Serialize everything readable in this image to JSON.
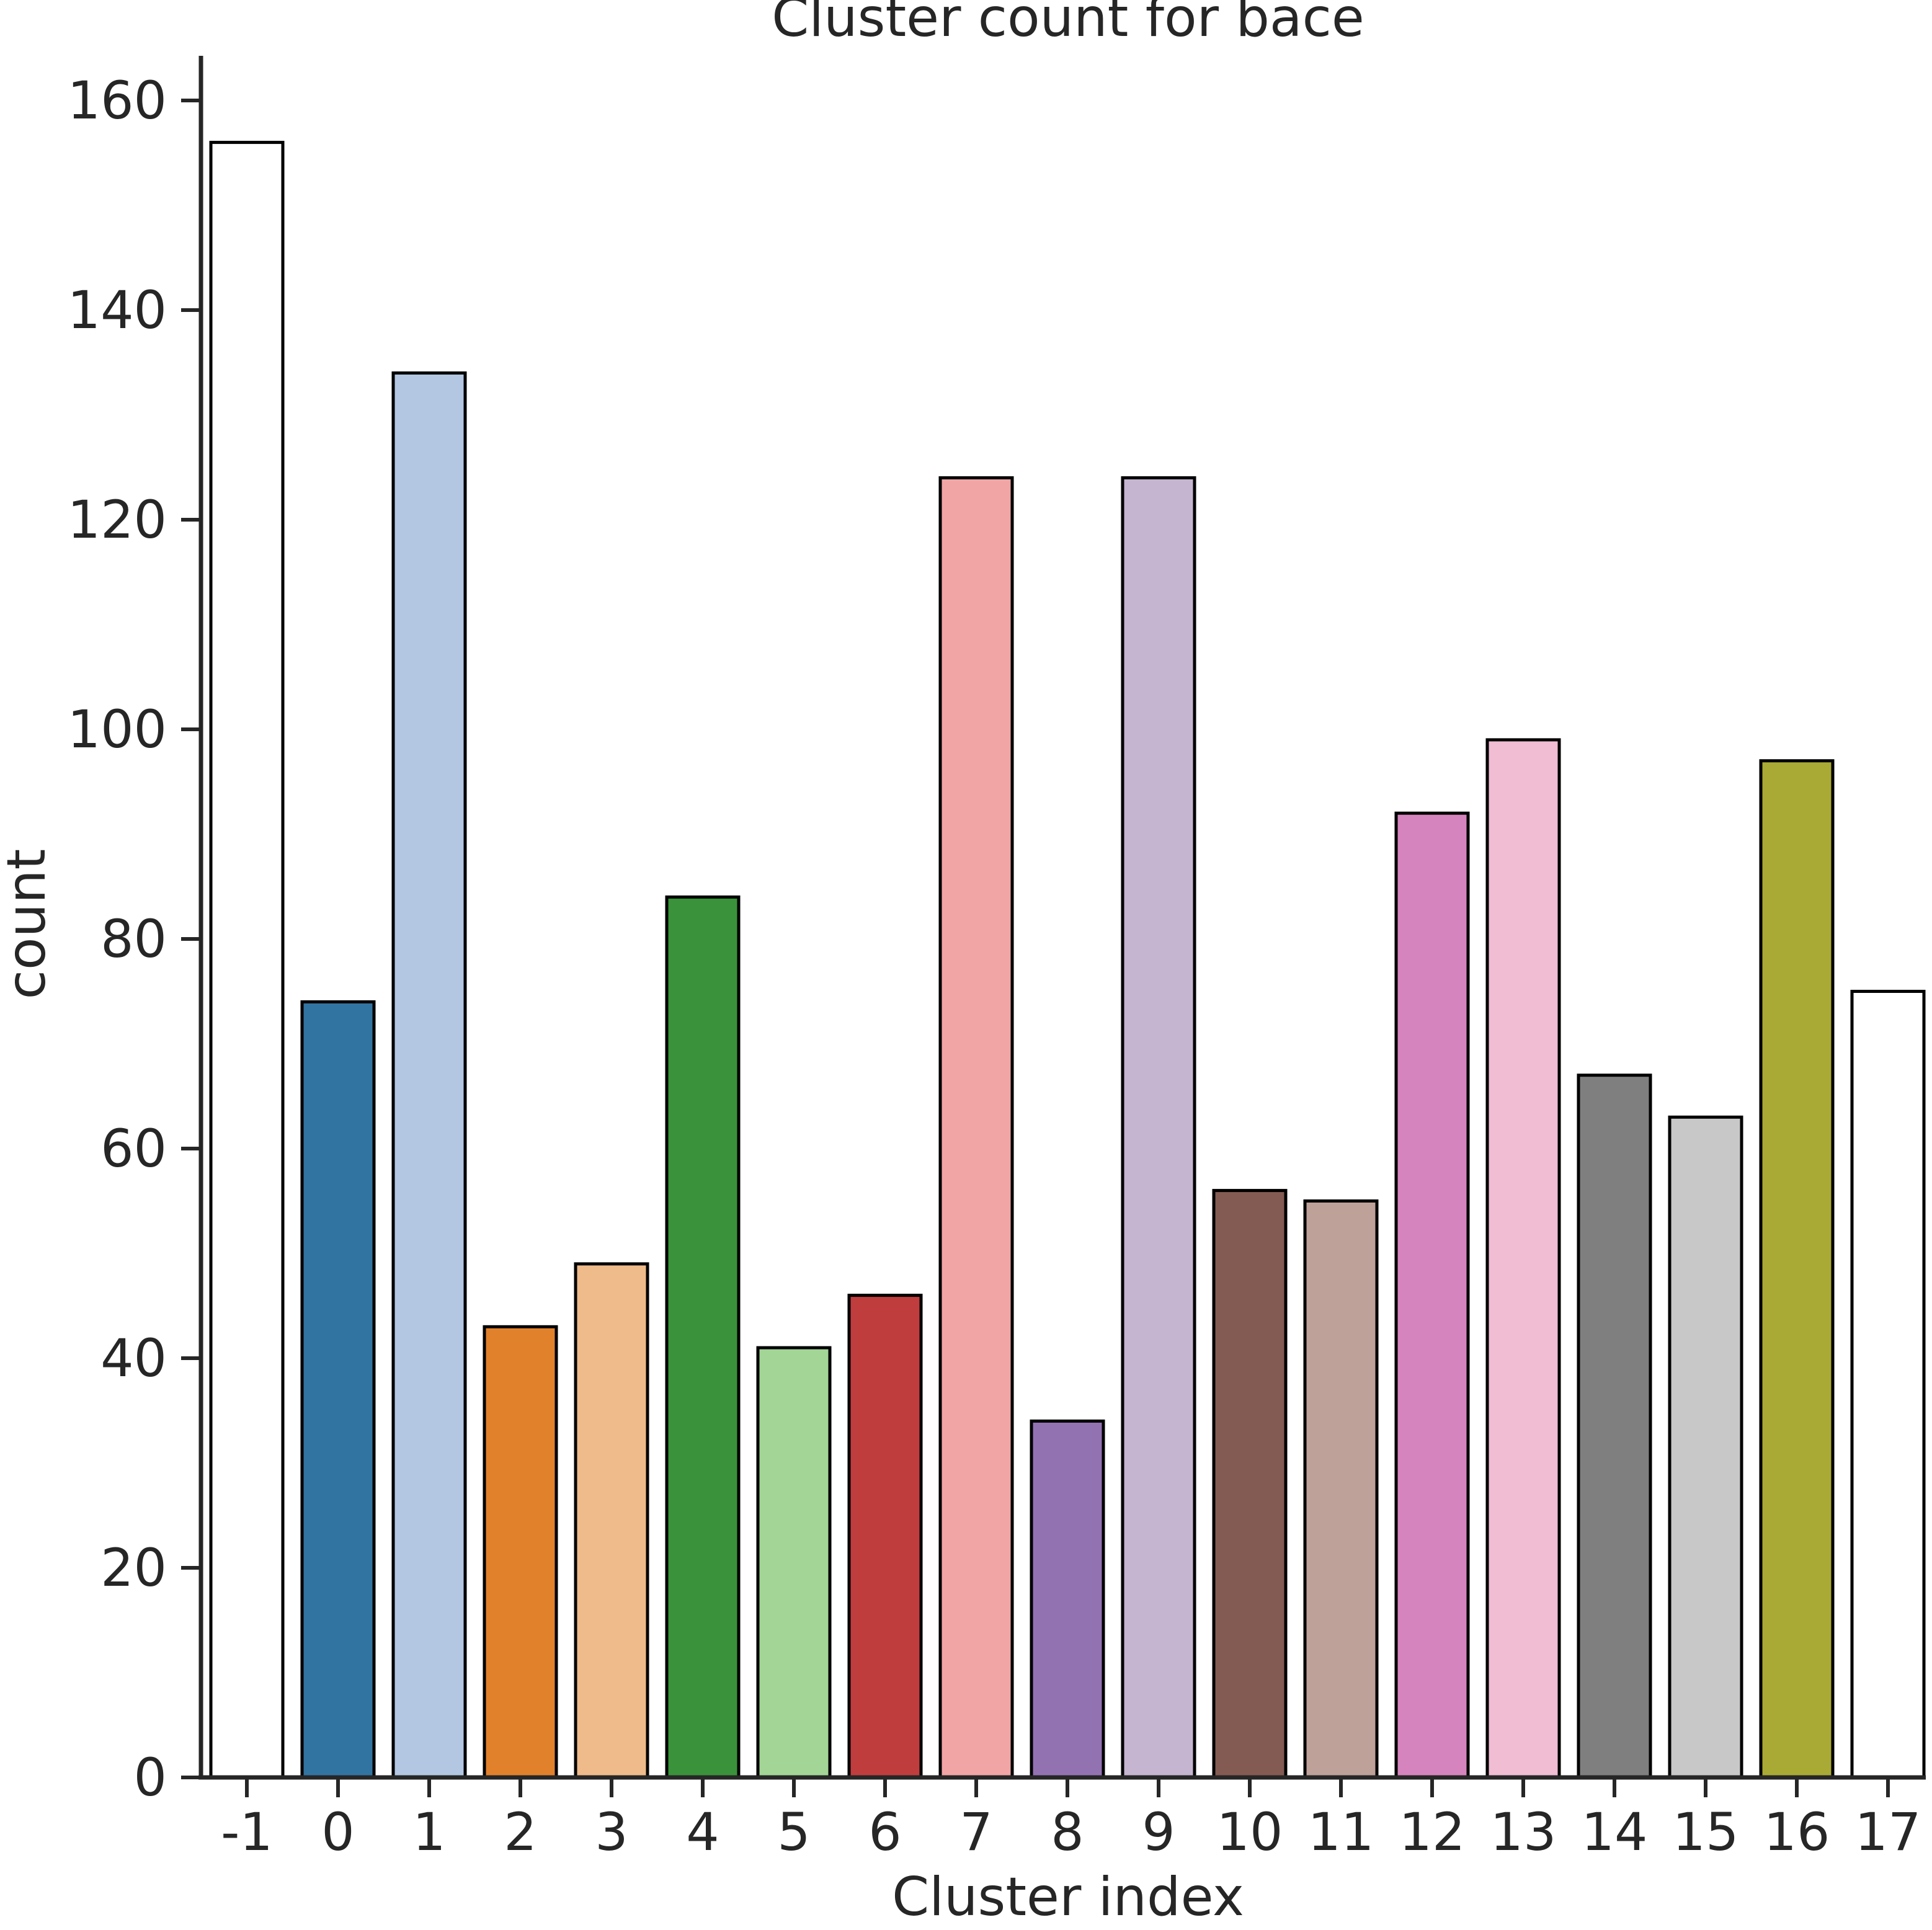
{
  "chart_data": {
    "type": "bar",
    "title": "Cluster count for bace",
    "xlabel": "Cluster index",
    "ylabel": "count",
    "ylim": [
      0,
      164
    ],
    "yticks": [
      "0",
      "20",
      "40",
      "60",
      "80",
      "100",
      "120",
      "140",
      "160"
    ],
    "categories": [
      "-1",
      "0",
      "1",
      "2",
      "3",
      "4",
      "5",
      "6",
      "7",
      "8",
      "9",
      "10",
      "11",
      "12",
      "13",
      "14",
      "15",
      "16",
      "17"
    ],
    "values": [
      156,
      74,
      134,
      43,
      49,
      84,
      41,
      46,
      124,
      34,
      124,
      56,
      55,
      92,
      99,
      67,
      63,
      97,
      75
    ],
    "colors": [
      "#ffffff",
      "#3274a1",
      "#b4c7e2",
      "#e1812c",
      "#f0bb8a",
      "#3a923a",
      "#a2d596",
      "#c03d3e",
      "#f2a5a5",
      "#9372b2",
      "#c5b5d0",
      "#845b53",
      "#bea199",
      "#d684bd",
      "#f0bdd3",
      "#7f7f7f",
      "#c8c8c8",
      "#a9aa35",
      "#ffffff"
    ],
    "bar_edge_color": "#000000",
    "axis_color": "#262626",
    "grid": false,
    "legend": "none"
  }
}
